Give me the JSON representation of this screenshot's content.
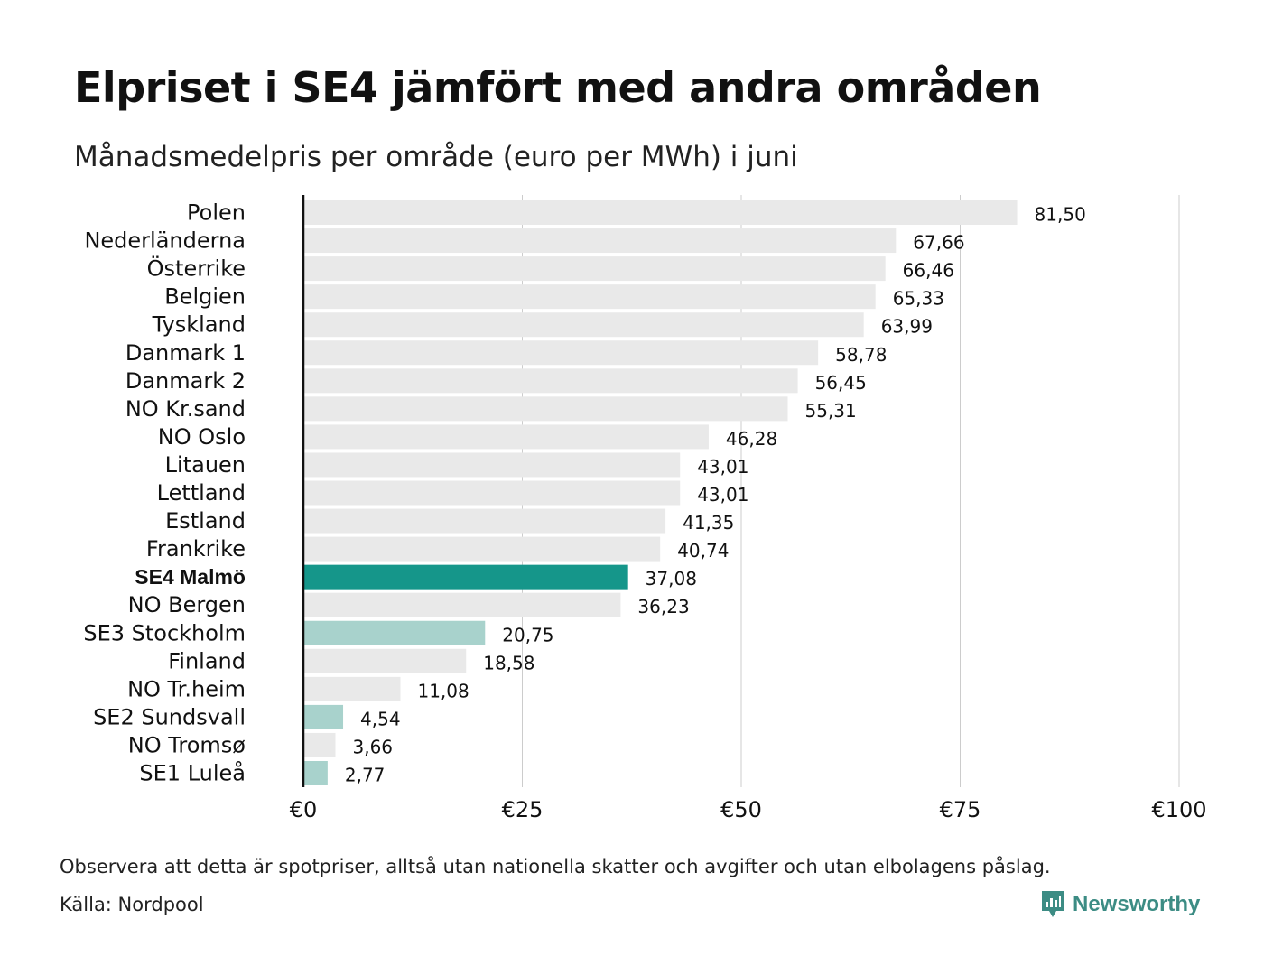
{
  "title": "Elpriset i SE4 jämfört med andra områden",
  "subtitle": "Månadsmedelpris per område (euro per MWh) i juni",
  "note": "Observera att detta är spotpriser, alltså utan nationella skatter och avgifter och utan elbolagens påslag.",
  "source": "Källa: Nordpool",
  "logo": {
    "text": "Newsworthy",
    "icon": "newsworthy-logo-icon"
  },
  "colors": {
    "default_bar": "#e9e9e9",
    "highlight_bar": "#15968a",
    "swedish_bar": "#a8d2cc",
    "grid": "#cccccc",
    "axis": "#111111"
  },
  "chart_data": {
    "type": "bar",
    "orientation": "horizontal",
    "categories": [
      "Polen",
      "Nederländerna",
      "Österrike",
      "Belgien",
      "Tyskland",
      "Danmark  1",
      "Danmark  2",
      "NO Kr.sand",
      "NO Oslo",
      "Litauen",
      "Lettland",
      "Estland",
      "Frankrike",
      "SE4 Malmö",
      "NO Bergen",
      "SE3  Stockholm",
      "Finland",
      "NO Tr.heim",
      "SE2  Sundsvall",
      "NO Tromsø",
      "SE1  Luleå"
    ],
    "values": [
      81.5,
      67.66,
      66.46,
      65.33,
      63.99,
      58.78,
      56.45,
      55.31,
      46.28,
      43.01,
      43.01,
      41.35,
      40.74,
      37.08,
      36.23,
      20.75,
      18.58,
      11.08,
      4.54,
      3.66,
      2.77
    ],
    "value_labels": [
      "81,50",
      "67,66",
      "66,46",
      "65,33",
      "63,99",
      "58,78",
      "56,45",
      "55,31",
      "46,28",
      "43,01",
      "43,01",
      "41,35",
      "40,74",
      "37,08",
      "36,23",
      "20,75",
      "18,58",
      "11,08",
      "4,54",
      "3,66",
      "2,77"
    ],
    "bar_style": [
      "default",
      "default",
      "default",
      "default",
      "default",
      "default",
      "default",
      "default",
      "default",
      "default",
      "default",
      "default",
      "default",
      "highlight",
      "default",
      "swedish",
      "default",
      "default",
      "swedish",
      "default",
      "swedish"
    ],
    "xticks": [
      0,
      25,
      50,
      75,
      100
    ],
    "xtick_labels": [
      "€0",
      "€25",
      "€50",
      "€75",
      "€100"
    ],
    "xlim": [
      0,
      100
    ],
    "grid": true,
    "legend": "none"
  }
}
